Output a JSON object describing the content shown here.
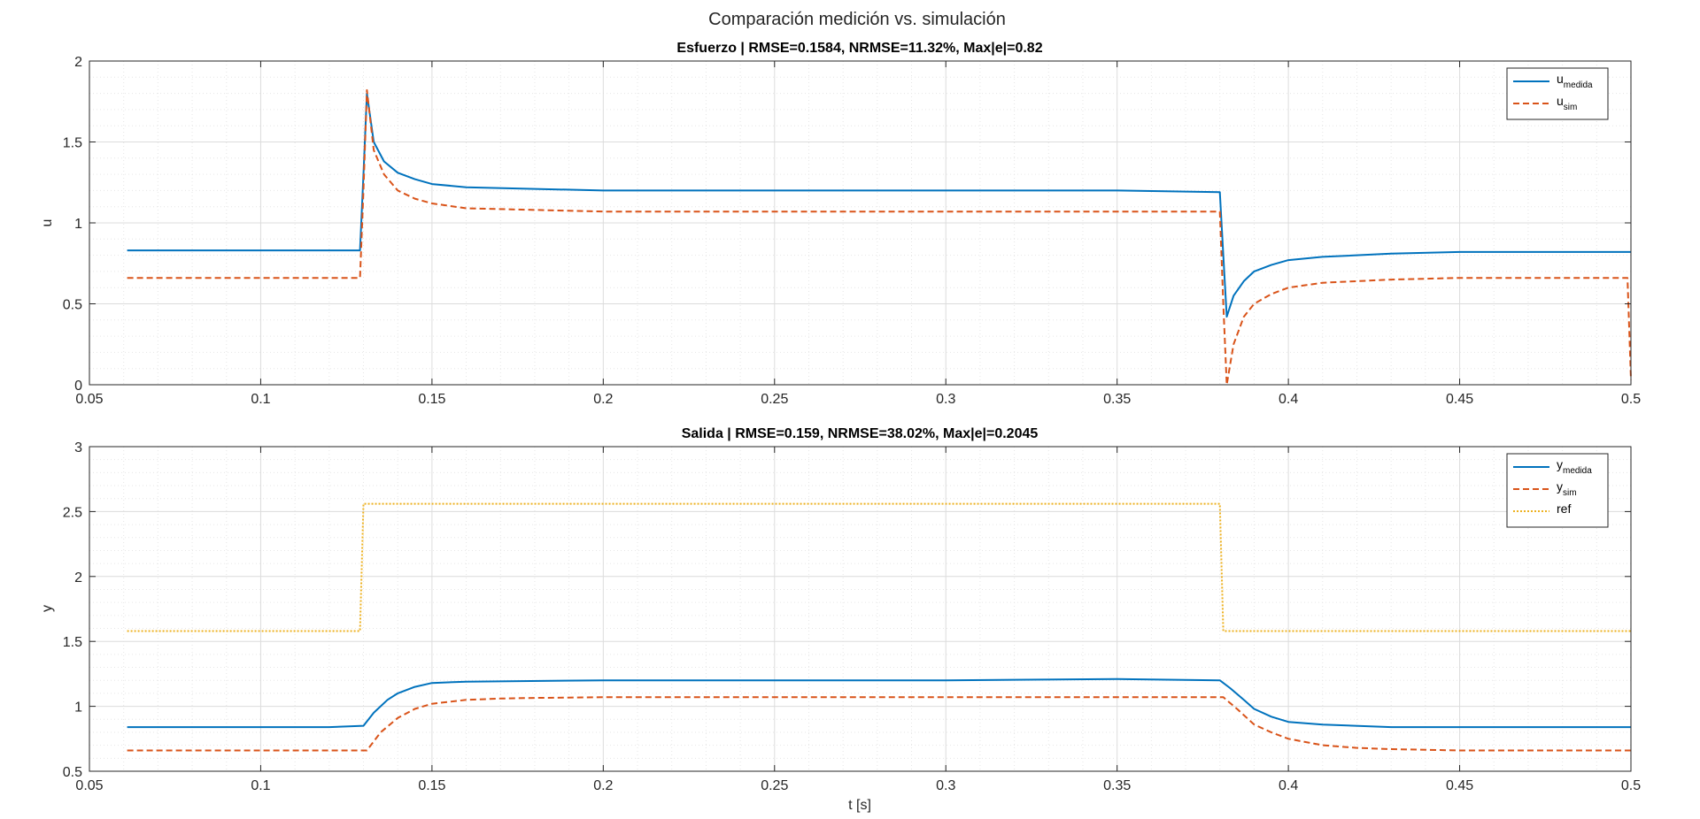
{
  "figure": {
    "suptitle": "Comparación medición vs. simulación",
    "xlabel": "t [s]"
  },
  "chart_data": [
    {
      "type": "line",
      "title": "Esfuerzo  |  RMSE=0.1584,  NRMSE=11.32%,  Max|e|=0.82",
      "xlabel": "",
      "ylabel": "u",
      "xlim": [
        0.05,
        0.5
      ],
      "ylim": [
        0,
        2
      ],
      "xticks": [
        0.05,
        0.1,
        0.15,
        0.2,
        0.25,
        0.3,
        0.35,
        0.4,
        0.45,
        0.5
      ],
      "xtick_labels": [
        "0.05",
        "0.1",
        "0.15",
        "0.2",
        "0.25",
        "0.3",
        "0.35",
        "0.4",
        "0.45",
        "0.5"
      ],
      "yticks": [
        0,
        0.5,
        1,
        1.5,
        2
      ],
      "ytick_labels": [
        "0",
        "0.5",
        "1",
        "1.5",
        "2"
      ],
      "grid": true,
      "minor_grid": true,
      "legend_position": "top-right",
      "series": [
        {
          "name": "u",
          "name_sub": "medida",
          "color": "#0072BD",
          "style": "solid",
          "x": [
            0.061,
            0.08,
            0.1,
            0.12,
            0.129,
            0.13,
            0.131,
            0.133,
            0.136,
            0.14,
            0.145,
            0.15,
            0.16,
            0.2,
            0.25,
            0.3,
            0.35,
            0.38,
            0.381,
            0.382,
            0.384,
            0.387,
            0.39,
            0.395,
            0.4,
            0.41,
            0.43,
            0.45,
            0.5
          ],
          "y": [
            0.83,
            0.83,
            0.83,
            0.83,
            0.83,
            1.3,
            1.8,
            1.5,
            1.38,
            1.31,
            1.27,
            1.24,
            1.22,
            1.2,
            1.2,
            1.2,
            1.2,
            1.19,
            0.8,
            0.42,
            0.55,
            0.64,
            0.7,
            0.74,
            0.77,
            0.79,
            0.81,
            0.82,
            0.82
          ]
        },
        {
          "name": "u",
          "name_sub": "sim",
          "color": "#D95319",
          "style": "dashed",
          "x": [
            0.061,
            0.08,
            0.1,
            0.12,
            0.129,
            0.13,
            0.131,
            0.133,
            0.136,
            0.14,
            0.145,
            0.15,
            0.16,
            0.2,
            0.25,
            0.3,
            0.35,
            0.38,
            0.381,
            0.382,
            0.384,
            0.387,
            0.39,
            0.395,
            0.4,
            0.41,
            0.43,
            0.45,
            0.499,
            0.5
          ],
          "y": [
            0.66,
            0.66,
            0.66,
            0.66,
            0.66,
            1.2,
            1.82,
            1.45,
            1.3,
            1.2,
            1.15,
            1.12,
            1.09,
            1.07,
            1.07,
            1.07,
            1.07,
            1.07,
            0.5,
            0.0,
            0.25,
            0.42,
            0.5,
            0.56,
            0.6,
            0.63,
            0.65,
            0.66,
            0.66,
            0.03
          ]
        }
      ]
    },
    {
      "type": "line",
      "title": "Salida  |  RMSE=0.159,  NRMSE=38.02%,  Max|e|=0.2045",
      "xlabel": "t [s]",
      "ylabel": "y",
      "xlim": [
        0.05,
        0.5
      ],
      "ylim": [
        0.5,
        3
      ],
      "xticks": [
        0.05,
        0.1,
        0.15,
        0.2,
        0.25,
        0.3,
        0.35,
        0.4,
        0.45,
        0.5
      ],
      "xtick_labels": [
        "0.05",
        "0.1",
        "0.15",
        "0.2",
        "0.25",
        "0.3",
        "0.35",
        "0.4",
        "0.45",
        "0.5"
      ],
      "yticks": [
        0.5,
        1,
        1.5,
        2,
        2.5,
        3
      ],
      "ytick_labels": [
        "0.5",
        "1",
        "1.5",
        "2",
        "2.5",
        "3"
      ],
      "grid": true,
      "minor_grid": true,
      "legend_position": "top-right",
      "series": [
        {
          "name": "y",
          "name_sub": "medida",
          "color": "#0072BD",
          "style": "solid",
          "x": [
            0.061,
            0.08,
            0.1,
            0.12,
            0.13,
            0.133,
            0.137,
            0.14,
            0.145,
            0.15,
            0.16,
            0.2,
            0.25,
            0.3,
            0.35,
            0.38,
            0.383,
            0.387,
            0.39,
            0.395,
            0.4,
            0.41,
            0.43,
            0.45,
            0.5
          ],
          "y": [
            0.84,
            0.84,
            0.84,
            0.84,
            0.85,
            0.95,
            1.05,
            1.1,
            1.15,
            1.18,
            1.19,
            1.2,
            1.2,
            1.2,
            1.21,
            1.2,
            1.14,
            1.05,
            0.98,
            0.92,
            0.88,
            0.86,
            0.84,
            0.84,
            0.84
          ]
        },
        {
          "name": "y",
          "name_sub": "sim",
          "color": "#D95319",
          "style": "dashed",
          "x": [
            0.061,
            0.08,
            0.1,
            0.12,
            0.131,
            0.135,
            0.14,
            0.145,
            0.15,
            0.16,
            0.17,
            0.18,
            0.2,
            0.25,
            0.3,
            0.35,
            0.381,
            0.385,
            0.39,
            0.395,
            0.4,
            0.41,
            0.42,
            0.43,
            0.45,
            0.5
          ],
          "y": [
            0.66,
            0.66,
            0.66,
            0.66,
            0.66,
            0.8,
            0.91,
            0.98,
            1.02,
            1.05,
            1.06,
            1.065,
            1.07,
            1.07,
            1.07,
            1.07,
            1.07,
            0.98,
            0.86,
            0.8,
            0.75,
            0.7,
            0.68,
            0.67,
            0.66,
            0.66
          ]
        },
        {
          "name": "ref",
          "name_sub": "",
          "color": "#EDB120",
          "style": "dotted",
          "x": [
            0.061,
            0.09,
            0.12,
            0.129,
            0.13,
            0.15,
            0.2,
            0.25,
            0.3,
            0.35,
            0.38,
            0.381,
            0.4,
            0.45,
            0.5
          ],
          "y": [
            1.58,
            1.58,
            1.58,
            1.58,
            2.56,
            2.56,
            2.56,
            2.56,
            2.56,
            2.56,
            2.56,
            1.58,
            1.58,
            1.58,
            1.58
          ]
        }
      ]
    }
  ]
}
